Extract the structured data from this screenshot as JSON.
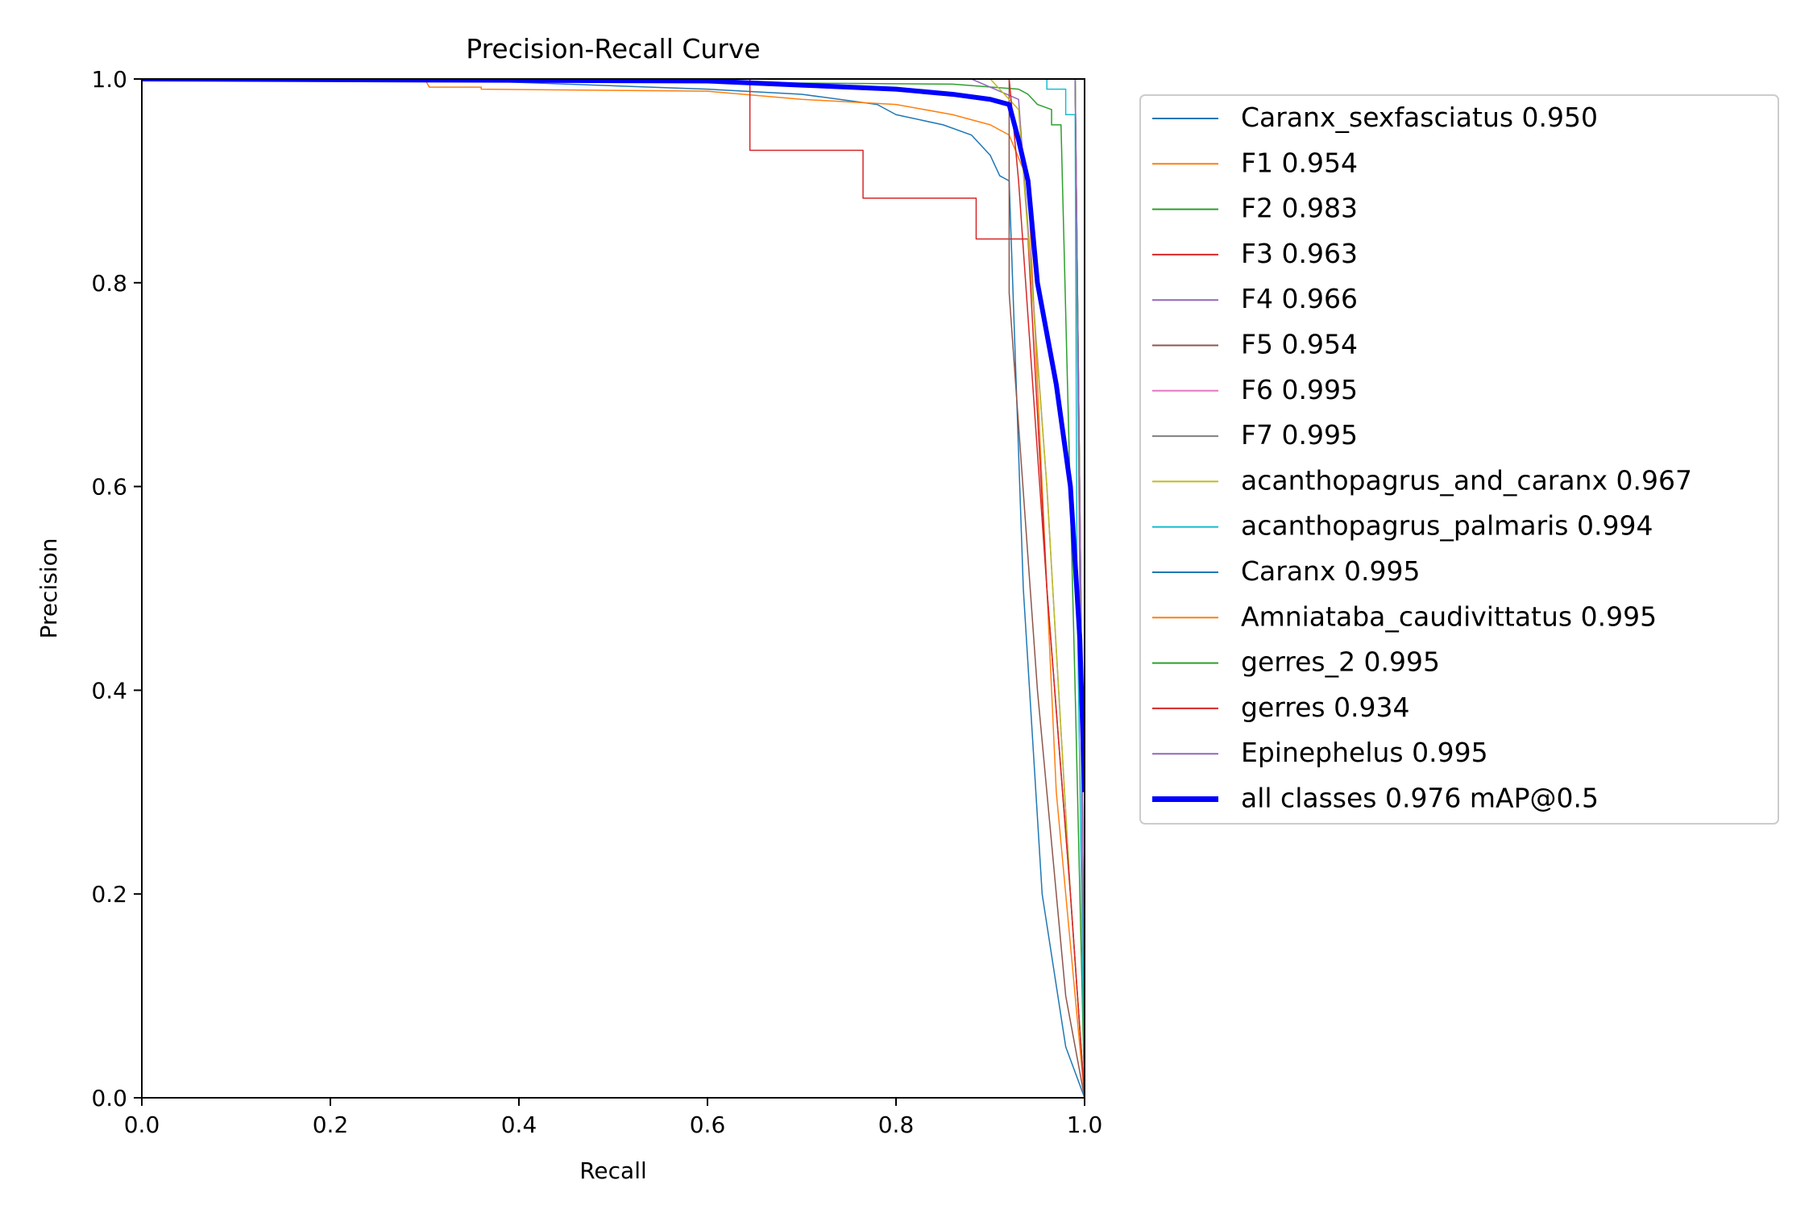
{
  "chart_data": {
    "type": "line",
    "title": "Precision-Recall Curve",
    "xlabel": "Recall",
    "ylabel": "Precision",
    "xlim": [
      0,
      1
    ],
    "ylim": [
      0,
      1
    ],
    "x_ticks": [
      "0.0",
      "0.2",
      "0.4",
      "0.6",
      "0.8",
      "1.0"
    ],
    "y_ticks": [
      "0.0",
      "0.2",
      "0.4",
      "0.6",
      "0.8",
      "1.0"
    ],
    "grid": false,
    "legend_position": "outside-right",
    "series": [
      {
        "name": "Caranx_sexfasciatus 0.950",
        "color": "#1f77b4",
        "width": 1.5,
        "points": [
          [
            0,
            1
          ],
          [
            0.3,
            1
          ],
          [
            0.6,
            0.99
          ],
          [
            0.7,
            0.985
          ],
          [
            0.78,
            0.975
          ],
          [
            0.8,
            0.965
          ],
          [
            0.85,
            0.955
          ],
          [
            0.88,
            0.945
          ],
          [
            0.9,
            0.925
          ],
          [
            0.91,
            0.905
          ],
          [
            0.92,
            0.9
          ],
          [
            0.935,
            0.5
          ],
          [
            0.955,
            0.2
          ],
          [
            0.98,
            0.05
          ],
          [
            1,
            0
          ]
        ]
      },
      {
        "name": "F1 0.954",
        "color": "#ff7f0e",
        "width": 1.5,
        "points": [
          [
            0,
            1
          ],
          [
            0.3,
            1
          ],
          [
            0.305,
            0.992
          ],
          [
            0.36,
            0.992
          ],
          [
            0.36,
            0.99
          ],
          [
            0.6,
            0.988
          ],
          [
            0.7,
            0.98
          ],
          [
            0.8,
            0.975
          ],
          [
            0.86,
            0.965
          ],
          [
            0.9,
            0.955
          ],
          [
            0.92,
            0.945
          ],
          [
            0.94,
            0.9
          ],
          [
            0.955,
            0.6
          ],
          [
            0.97,
            0.3
          ],
          [
            0.99,
            0.1
          ],
          [
            1,
            0
          ]
        ]
      },
      {
        "name": "F2 0.983",
        "color": "#2ca02c",
        "width": 1.5,
        "points": [
          [
            0,
            1
          ],
          [
            0.86,
            0.995
          ],
          [
            0.93,
            0.99
          ],
          [
            0.94,
            0.985
          ],
          [
            0.95,
            0.975
          ],
          [
            0.965,
            0.97
          ],
          [
            0.965,
            0.955
          ],
          [
            0.975,
            0.955
          ],
          [
            0.99,
            0.4
          ],
          [
            1,
            0
          ]
        ]
      },
      {
        "name": "F3 0.963",
        "color": "#d62728",
        "width": 1.5,
        "points": [
          [
            0,
            1
          ],
          [
            0.645,
            1
          ],
          [
            0.645,
            0.93
          ],
          [
            0.765,
            0.93
          ],
          [
            0.765,
            0.883
          ],
          [
            0.885,
            0.883
          ],
          [
            0.885,
            0.843
          ],
          [
            0.94,
            0.843
          ],
          [
            0.96,
            0.5
          ],
          [
            0.985,
            0.2
          ],
          [
            1,
            0
          ]
        ]
      },
      {
        "name": "F4 0.966",
        "color": "#9467bd",
        "width": 1.5,
        "points": [
          [
            0,
            1
          ],
          [
            0.88,
            1
          ],
          [
            0.93,
            0.98
          ],
          [
            0.96,
            0.6
          ],
          [
            0.985,
            0.2
          ],
          [
            1,
            0
          ]
        ]
      },
      {
        "name": "F5 0.954",
        "color": "#8c564b",
        "width": 1.5,
        "points": [
          [
            0,
            1
          ],
          [
            0.92,
            1
          ],
          [
            0.92,
            0.79
          ],
          [
            0.95,
            0.4
          ],
          [
            0.98,
            0.1
          ],
          [
            1,
            0
          ]
        ]
      },
      {
        "name": "F6 0.995",
        "color": "#e377c2",
        "width": 1.5,
        "points": [
          [
            0,
            1
          ],
          [
            0.99,
            1
          ],
          [
            0.995,
            0.5
          ],
          [
            1,
            0
          ]
        ]
      },
      {
        "name": "F7 0.995",
        "color": "#7f7f7f",
        "width": 1.5,
        "points": [
          [
            0,
            1
          ],
          [
            0.99,
            1
          ],
          [
            0.995,
            0.5
          ],
          [
            1,
            0
          ]
        ]
      },
      {
        "name": "acanthopagrus_and_caranx 0.967",
        "color": "#bcbd22",
        "width": 1.5,
        "points": [
          [
            0,
            1
          ],
          [
            0.9,
            1
          ],
          [
            0.93,
            0.97
          ],
          [
            0.96,
            0.6
          ],
          [
            0.985,
            0.2
          ],
          [
            1,
            0
          ]
        ]
      },
      {
        "name": "acanthopagrus_palmaris 0.994",
        "color": "#17becf",
        "width": 1.5,
        "points": [
          [
            0,
            1
          ],
          [
            0.96,
            1
          ],
          [
            0.96,
            0.99
          ],
          [
            0.98,
            0.99
          ],
          [
            0.98,
            0.965
          ],
          [
            0.99,
            0.965
          ],
          [
            0.992,
            0.5
          ],
          [
            1,
            0
          ]
        ]
      },
      {
        "name": "Caranx 0.995",
        "color": "#1f77b4",
        "width": 1.5,
        "points": [
          [
            0,
            1
          ],
          [
            0.99,
            1
          ],
          [
            0.996,
            0.5
          ],
          [
            1,
            0
          ]
        ]
      },
      {
        "name": "Amniataba_caudivittatus 0.995",
        "color": "#ff7f0e",
        "width": 1.5,
        "points": [
          [
            0,
            1
          ],
          [
            0.99,
            1
          ],
          [
            0.996,
            0.5
          ],
          [
            1,
            0
          ]
        ]
      },
      {
        "name": "gerres_2 0.995",
        "color": "#2ca02c",
        "width": 1.5,
        "points": [
          [
            0,
            1
          ],
          [
            0.99,
            1
          ],
          [
            0.996,
            0.5
          ],
          [
            1,
            0
          ]
        ]
      },
      {
        "name": "gerres 0.934",
        "color": "#d62728",
        "width": 1.5,
        "points": [
          [
            0,
            1
          ],
          [
            0.92,
            1
          ],
          [
            0.93,
            0.9
          ],
          [
            0.96,
            0.5
          ],
          [
            0.985,
            0.2
          ],
          [
            1,
            0
          ]
        ]
      },
      {
        "name": "Epinephelus 0.995",
        "color": "#9467bd",
        "width": 1.5,
        "points": [
          [
            0,
            1
          ],
          [
            0.99,
            1
          ],
          [
            0.996,
            0.5
          ],
          [
            1,
            0
          ]
        ]
      },
      {
        "name": "all classes 0.976 mAP@0.5",
        "color": "#0000ff",
        "width": 6,
        "points": [
          [
            0,
            1
          ],
          [
            0.6,
            0.998
          ],
          [
            0.7,
            0.994
          ],
          [
            0.8,
            0.99
          ],
          [
            0.86,
            0.985
          ],
          [
            0.9,
            0.98
          ],
          [
            0.92,
            0.975
          ],
          [
            0.93,
            0.94
          ],
          [
            0.94,
            0.9
          ],
          [
            0.95,
            0.8
          ],
          [
            0.97,
            0.7
          ],
          [
            0.985,
            0.6
          ],
          [
            0.995,
            0.45
          ],
          [
            1,
            0.3
          ]
        ]
      }
    ]
  }
}
